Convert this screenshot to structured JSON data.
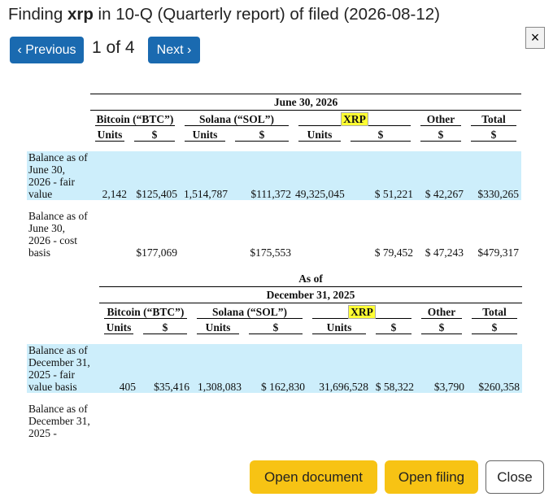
{
  "header": {
    "title_prefix": "Finding ",
    "query": "xrp",
    "title_suffix": " in 10-Q (Quarterly report) of filed (2026-08-12)",
    "close_icon": "×"
  },
  "nav": {
    "previous": "‹ Previous",
    "counter": "1 of 4",
    "next": "Next ›"
  },
  "tables": [
    {
      "headings": [
        "June 30, 2026"
      ],
      "groups": [
        "Bitcoin (“BTC”)",
        "Solana (“SOL”)",
        "XRP",
        "Other",
        "Total"
      ],
      "subheads": [
        "Units",
        "$",
        "Units",
        "$",
        "Units",
        "$",
        "$",
        "$"
      ],
      "rows": [
        {
          "label": "Balance as of June 30, 2026 - fair value",
          "cells": [
            "2,142",
            "$125,405",
            "1,514,787",
            "$111,372",
            "49,325,045",
            "$ 51,221",
            "$ 42,267",
            "$330,265"
          ]
        },
        {
          "label": "Balance as of June 30, 2026 - cost basis",
          "cells": [
            null,
            "$177,069",
            null,
            "$175,553",
            null,
            "$ 79,452",
            "$ 47,243",
            "$479,317"
          ]
        }
      ]
    },
    {
      "headings": [
        "As of",
        "December 31, 2025"
      ],
      "groups": [
        "Bitcoin (“BTC”)",
        "Solana (“SOL”)",
        "XRP",
        "Other",
        "Total"
      ],
      "subheads": [
        "Units",
        "$",
        "Units",
        "$",
        "Units",
        "$",
        "$",
        "$"
      ],
      "rows": [
        {
          "label": "Balance as of December 31, 2025 - fair value basis",
          "cells": [
            "405",
            "$35,416",
            "1,308,083",
            "$ 162,830",
            "31,696,528",
            "$ 58,322",
            "$3,790",
            "$260,358"
          ]
        },
        {
          "label": "Balance as of December 31, 2025 -",
          "cells": [
            null,
            null,
            null,
            null,
            null,
            null,
            null,
            null
          ]
        }
      ]
    }
  ],
  "footer": {
    "open_document": "Open document",
    "open_filing": "Open filing",
    "close": "Close"
  }
}
